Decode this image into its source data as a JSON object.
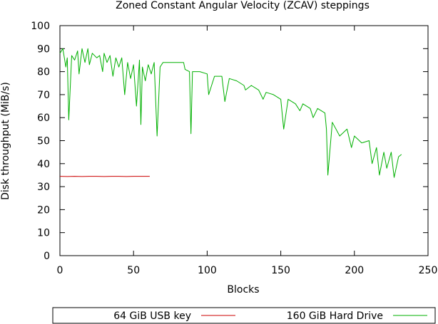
{
  "chart_data": {
    "type": "line",
    "title": "Zoned Constant Angular Velocity (ZCAV) steppings",
    "xlabel": "Blocks",
    "ylabel": "Disk throughput (MiB/s)",
    "xlim": [
      0,
      250
    ],
    "ylim": [
      0,
      100
    ],
    "xticks": [
      "0",
      "50",
      "100",
      "150",
      "200",
      "250"
    ],
    "yticks": [
      "0",
      "10",
      "20",
      "30",
      "40",
      "50",
      "60",
      "70",
      "80",
      "90",
      "100"
    ],
    "grid": false,
    "legend_position": "bottom",
    "series": [
      {
        "name": "64 GiB USB key",
        "color": "#cc0000",
        "x": [
          0,
          5,
          10,
          15,
          20,
          25,
          30,
          35,
          40,
          45,
          50,
          55,
          61
        ],
        "y": [
          34.5,
          34.4,
          34.5,
          34.4,
          34.5,
          34.5,
          34.4,
          34.5,
          34.5,
          34.4,
          34.5,
          34.5,
          34.5
        ]
      },
      {
        "name": "160 GiB Hard Drive",
        "color": "#00b000",
        "x": [
          0,
          2,
          4,
          5,
          6,
          8,
          10,
          12,
          13,
          15,
          17,
          19,
          20,
          22,
          25,
          27,
          29,
          30,
          32,
          34,
          36,
          38,
          40,
          42,
          44,
          46,
          48,
          50,
          52,
          54,
          55,
          56,
          58,
          60,
          62,
          64,
          66,
          68,
          70,
          72,
          75,
          78,
          81,
          84,
          85,
          88,
          89,
          90,
          95,
          100,
          101,
          105,
          110,
          112,
          115,
          120,
          125,
          126,
          130,
          135,
          138,
          140,
          145,
          150,
          152,
          155,
          160,
          163,
          165,
          170,
          172,
          175,
          180,
          181,
          182,
          185,
          190,
          195,
          198,
          200,
          205,
          210,
          212,
          215,
          217,
          220,
          222,
          225,
          227,
          230,
          232
        ],
        "y": [
          88,
          90,
          82,
          86,
          59,
          87,
          85,
          89,
          79,
          90,
          84,
          90,
          83,
          88,
          86,
          87,
          80,
          88,
          84,
          87,
          78,
          86,
          82,
          86,
          70,
          84,
          77,
          83,
          65,
          85,
          57,
          82,
          76,
          83,
          79,
          84,
          52,
          82,
          84,
          84,
          84,
          84,
          84,
          84,
          81,
          80,
          53,
          80,
          80,
          79,
          70,
          78,
          78,
          67,
          77,
          76,
          74,
          72,
          74,
          72,
          68,
          71,
          70,
          68,
          55,
          68,
          66,
          63,
          66,
          64,
          60,
          64,
          62,
          55,
          35,
          58,
          52,
          55,
          47,
          52,
          49,
          50,
          40,
          47,
          35,
          45,
          38,
          45,
          34,
          43,
          44
        ]
      }
    ]
  }
}
